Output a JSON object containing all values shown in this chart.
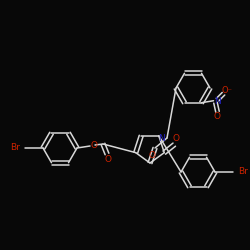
{
  "background_color": "#080808",
  "bond_color": "#d8d8d8",
  "atom_colors": {
    "Br": "#cc2200",
    "O": "#cc2200",
    "N": "#2222bb",
    "C": "#d8d8d8"
  },
  "figsize": [
    2.5,
    2.5
  ],
  "dpi": 100
}
